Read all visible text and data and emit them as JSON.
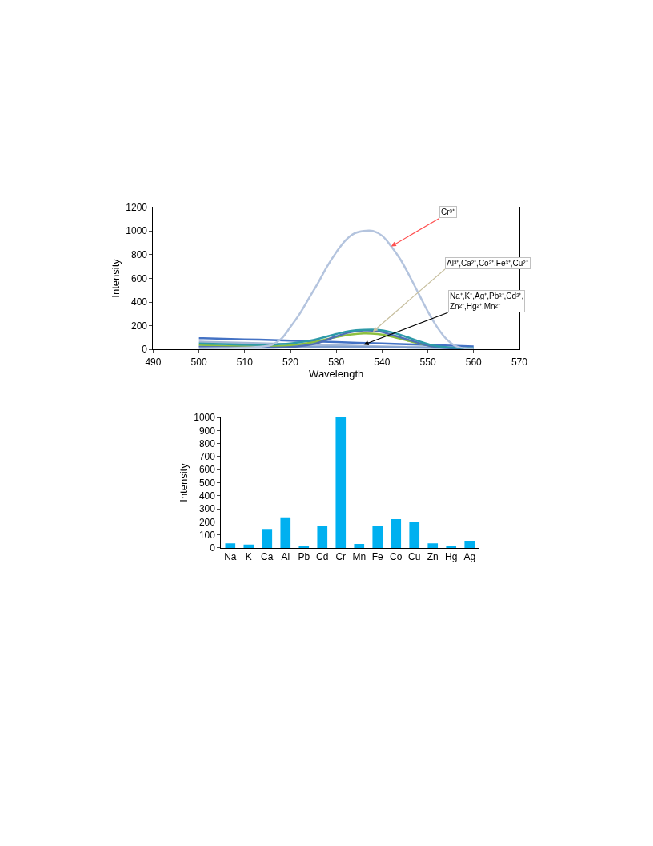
{
  "chart_data": [
    {
      "type": "line",
      "xlabel": "Wavelength",
      "ylabel": "Intensity",
      "xlim": [
        490,
        570
      ],
      "xticks": [
        490,
        500,
        510,
        520,
        530,
        540,
        550,
        560,
        570
      ],
      "ylim": [
        0,
        1200
      ],
      "yticks": [
        0,
        200,
        400,
        600,
        800,
        1000,
        1200
      ],
      "grid": false,
      "marker": "none",
      "line_style": "solid",
      "series": [
        {
          "color": "#4472c4",
          "x": [
            500,
            510,
            520,
            530,
            540,
            550,
            560
          ],
          "values": [
            95,
            85,
            75,
            62,
            50,
            38,
            25
          ]
        },
        {
          "color": "#a5b8d6",
          "x": [
            500,
            510,
            520,
            530,
            540,
            550,
            560
          ],
          "values": [
            65,
            55,
            45,
            35,
            25,
            18,
            12
          ]
        },
        {
          "color": "#7f9fcf",
          "x": [
            500,
            510,
            520,
            530,
            540,
            550,
            560
          ],
          "values": [
            30,
            28,
            25,
            22,
            18,
            14,
            10
          ]
        },
        {
          "color": "#8cbf3f",
          "x": [
            500,
            505,
            510,
            515,
            520,
            525,
            530,
            533,
            536,
            539,
            542,
            545,
            548,
            551
          ],
          "values": [
            40,
            30,
            25,
            25,
            35,
            60,
            105,
            125,
            135,
            130,
            110,
            80,
            50,
            25
          ]
        },
        {
          "color": "#4f6fb5",
          "x": [
            500,
            505,
            510,
            515,
            520,
            525,
            530,
            533,
            536,
            539,
            542,
            545,
            548,
            551,
            555,
            560
          ],
          "values": [
            20,
            18,
            15,
            15,
            20,
            45,
            110,
            145,
            160,
            155,
            125,
            90,
            55,
            25,
            10,
            5
          ]
        },
        {
          "color": "#2e9aa8",
          "x": [
            500,
            505,
            510,
            515,
            520,
            525,
            530,
            533,
            536,
            539,
            542,
            545,
            548,
            551,
            555,
            560
          ],
          "values": [
            50,
            45,
            40,
            40,
            50,
            80,
            130,
            155,
            165,
            165,
            145,
            110,
            70,
            35,
            15,
            10
          ]
        },
        {
          "color": "#b4c4de",
          "x": [
            500,
            505,
            510,
            514,
            516,
            518,
            520,
            522,
            524,
            526,
            528,
            530,
            532,
            534,
            536,
            538,
            540,
            542,
            544,
            546,
            548,
            550,
            552,
            554,
            556,
            558,
            560
          ],
          "values": [
            10,
            12,
            15,
            25,
            40,
            90,
            190,
            300,
            430,
            560,
            700,
            820,
            920,
            980,
            1000,
            1000,
            960,
            870,
            760,
            620,
            470,
            320,
            190,
            90,
            30,
            10,
            5
          ]
        }
      ],
      "annotations": [
        {
          "text": "Cr³⁺",
          "x": 542,
          "y": 870
        },
        {
          "text": "Al³⁺,Ca²⁺,Co²⁺,Fe³⁺,Cu²⁺",
          "x": 538,
          "y": 150
        },
        {
          "text": "Na⁺,K⁺,Ag⁺,Pb²⁺,Cd²⁺,\nZn²⁺,Hg²⁺,Mn²⁺",
          "x": 536,
          "y": 40
        }
      ]
    },
    {
      "type": "bar",
      "ylabel": "Intensity",
      "categories": [
        "Na",
        "K",
        "Ca",
        "Al",
        "Pb",
        "Cd",
        "Cr",
        "Mn",
        "Fe",
        "Co",
        "Cu",
        "Zn",
        "Hg",
        "Ag"
      ],
      "values": [
        35,
        25,
        145,
        235,
        15,
        165,
        1000,
        30,
        170,
        220,
        200,
        35,
        15,
        55
      ],
      "color": "#00b0f0",
      "ylim": [
        0,
        1000
      ],
      "yticks": [
        0,
        100,
        200,
        300,
        400,
        500,
        600,
        700,
        800,
        900,
        1000
      ],
      "grid": false
    }
  ]
}
